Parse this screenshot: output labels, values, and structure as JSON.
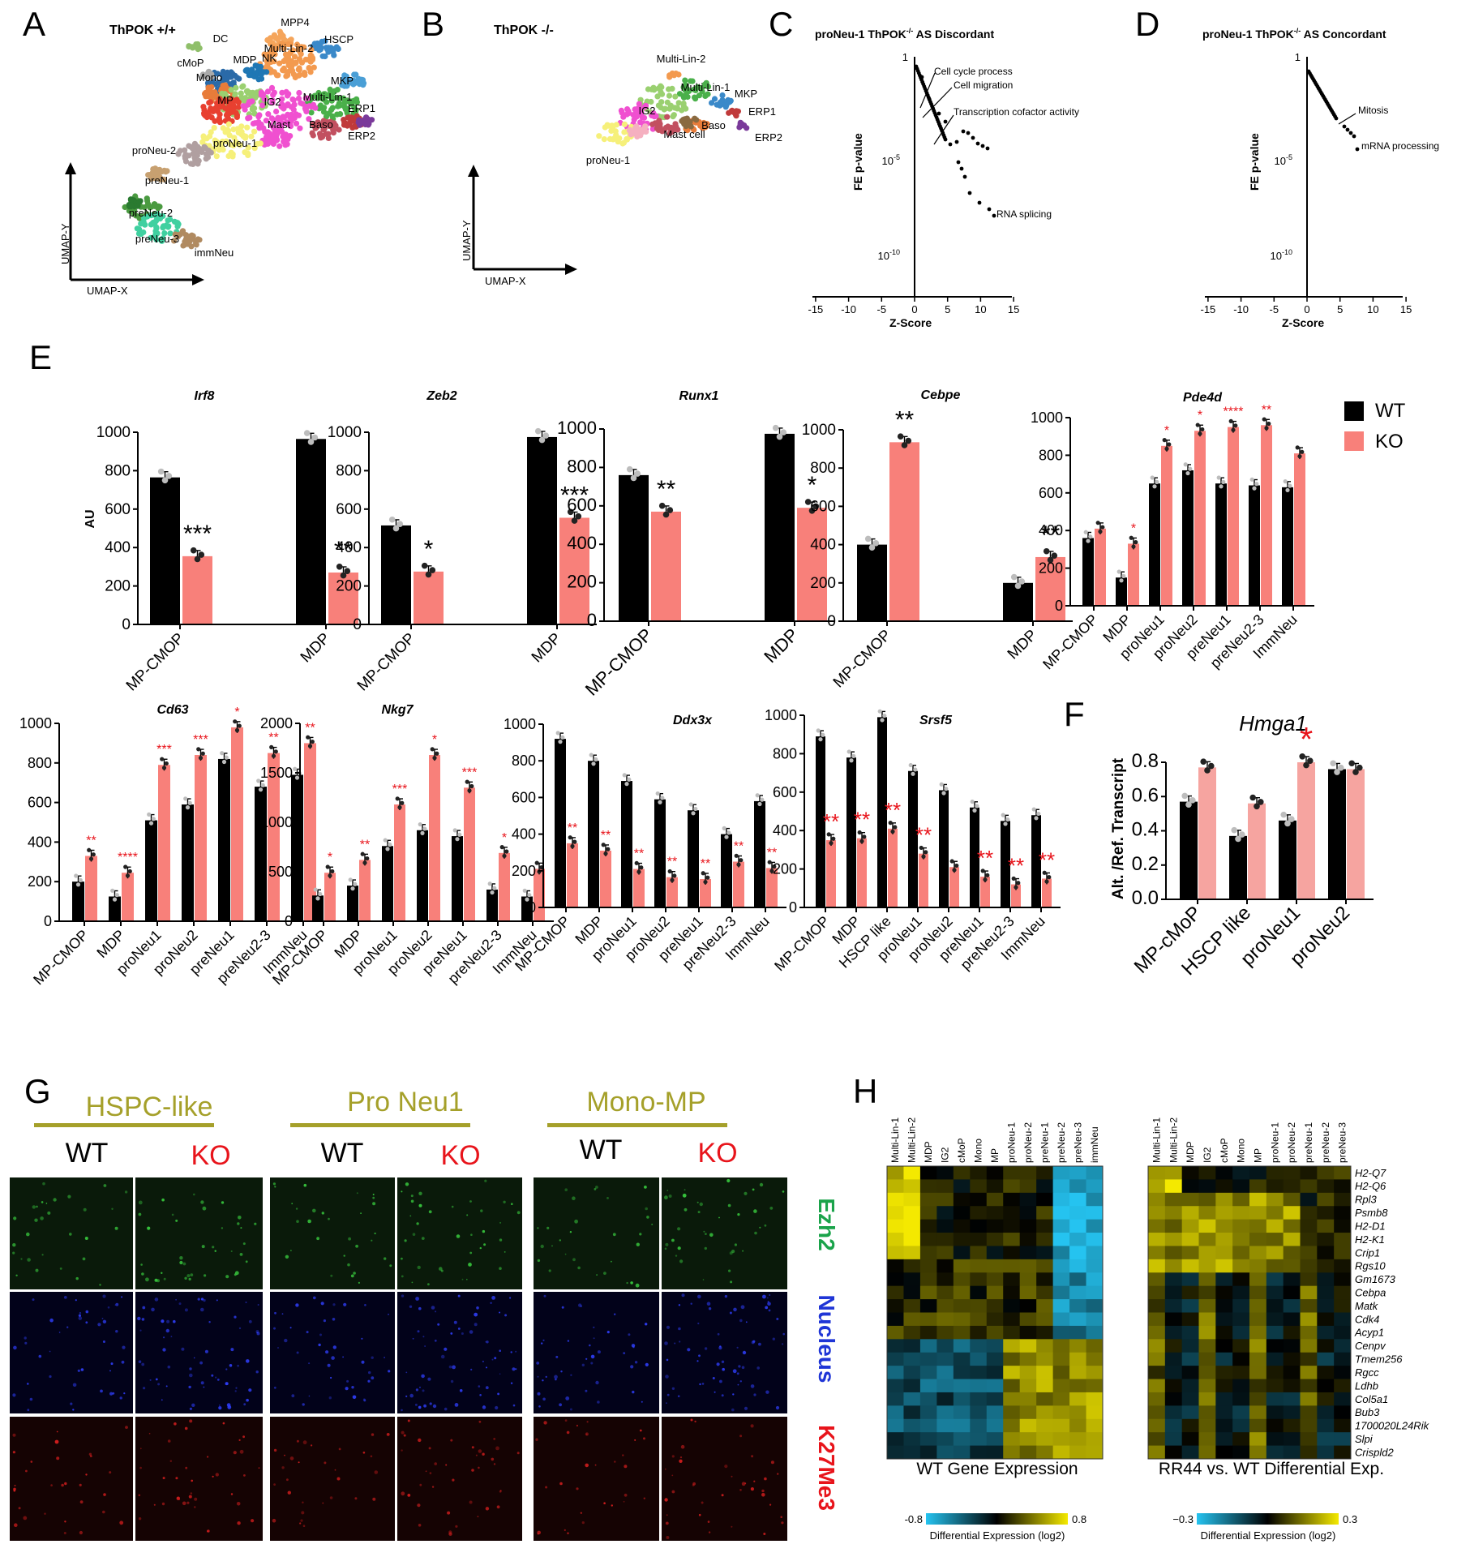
{
  "panel_letters": {
    "A": "A",
    "B": "B",
    "C": "C",
    "D": "D",
    "E": "E",
    "F": "F",
    "G": "G",
    "H": "H"
  },
  "colors": {
    "wt": "#000000",
    "ko": "#f8807a",
    "ko_light": "#f6a4a0",
    "star_black": "#000000",
    "star_red": "#e8141b",
    "olive": "#a5a02a"
  },
  "umap": {
    "A": {
      "title": "ThPOK +/+",
      "xlabel": "UMAP-X",
      "ylabel": "UMAP-Y",
      "labels": [
        "DC",
        "MPP4",
        "HSCP",
        "cMoP",
        "MDP",
        "NK",
        "Multi-Lin-2",
        "Mono",
        "MKP",
        "MP",
        "IG2",
        "Multi-Lin-1",
        "ERP1",
        "Mast",
        "Baso",
        "ERP2",
        "proNeu-2",
        "proNeu-1",
        "preNeu-1",
        "preNeu-2",
        "preNeu-3",
        "immNeu"
      ]
    },
    "B": {
      "title": "ThPOK -/-",
      "xlabel": "UMAP-X",
      "ylabel": "UMAP-Y",
      "labels": [
        "Multi-Lin-2",
        "Multi-Lin-1",
        "MKP",
        "IG2",
        "ERP1",
        "Baso",
        "Mast cell",
        "ERP2",
        "proNeu-1"
      ]
    }
  },
  "enrichment": {
    "C": {
      "title": "proNeu-1 ThPOK",
      "title_sup": "-/-",
      "title_tail": " AS Discordant",
      "ylabel": "FE p-value",
      "xlabel": "Z-Score",
      "yticks": [
        "1",
        "10",
        "10"
      ],
      "ytick_exp": [
        "",
        "-5",
        "-10"
      ],
      "xticks": [
        "-15",
        "-10",
        "-5",
        "0",
        "5",
        "10",
        "15"
      ],
      "annotations": [
        "Cell cycle process",
        "Cell migration",
        "Transcription cofactor activity",
        "RNA splicing"
      ]
    },
    "D": {
      "title": "proNeu-1 ThPOK",
      "title_sup": "-/-",
      "title_tail": " AS Concordant",
      "ylabel": "FE p-value",
      "xlabel": "Z-Score",
      "yticks": [
        "1",
        "10",
        "10"
      ],
      "ytick_exp": [
        "",
        "-5",
        "-10"
      ],
      "xticks": [
        "-15",
        "-10",
        "-5",
        "0",
        "5",
        "10",
        "15"
      ],
      "annotations": [
        "Mitosis",
        "mRNA processing"
      ]
    }
  },
  "legend": {
    "wt": "WT",
    "ko": "KO"
  },
  "chart_data": [
    {
      "type": "bar",
      "panel": "E",
      "title": "Irf8",
      "ylabel": "AU",
      "ylim": [
        0,
        1000
      ],
      "yticks": [
        "0",
        "200",
        "400",
        "600",
        "800",
        "1000"
      ],
      "categories": [
        "MP-CMOP",
        "MDP"
      ],
      "series": [
        {
          "name": "WT",
          "values": [
            765,
            965
          ]
        },
        {
          "name": "KO",
          "values": [
            355,
            270
          ]
        }
      ],
      "stars": [
        "***",
        "**"
      ],
      "star_color": "black"
    },
    {
      "type": "bar",
      "panel": "E",
      "title": "Zeb2",
      "ylim": [
        0,
        1000
      ],
      "yticks": [
        "0",
        "200",
        "400",
        "600",
        "800",
        "1000"
      ],
      "categories": [
        "MP-CMOP",
        "MDP"
      ],
      "series": [
        {
          "name": "WT",
          "values": [
            515,
            975
          ]
        },
        {
          "name": "KO",
          "values": [
            275,
            555
          ]
        }
      ],
      "stars": [
        "*",
        "***"
      ],
      "star_color": "black"
    },
    {
      "type": "bar",
      "panel": "E",
      "title": "Runx1",
      "ylim": [
        0,
        1000
      ],
      "yticks": [
        "0",
        "200",
        "400",
        "600",
        "800",
        "1000"
      ],
      "categories": [
        "MP-CMOP",
        "MDP"
      ],
      "series": [
        {
          "name": "WT",
          "values": [
            760,
            975
          ]
        },
        {
          "name": "KO",
          "values": [
            570,
            590
          ]
        }
      ],
      "stars": [
        "**",
        "*"
      ],
      "star_color": "black"
    },
    {
      "type": "bar",
      "panel": "E",
      "title": "Cebpe",
      "ylim": [
        0,
        1000
      ],
      "yticks": [
        "0",
        "200",
        "400",
        "600",
        "800",
        "1000"
      ],
      "categories": [
        "MP-CMOP",
        "MDP"
      ],
      "series": [
        {
          "name": "WT",
          "values": [
            400,
            200
          ]
        },
        {
          "name": "KO",
          "values": [
            935,
            335
          ]
        }
      ],
      "stars": [
        "**",
        "**"
      ],
      "star_color": "black"
    },
    {
      "type": "bar",
      "panel": "E",
      "title": "Pde4d",
      "ylim": [
        0,
        1000
      ],
      "yticks": [
        "0",
        "200",
        "400",
        "600",
        "800",
        "1000"
      ],
      "categories": [
        "MP-CMOP",
        "MDP",
        "proNeu1",
        "proNeu2",
        "preNeu1",
        "preNeu2-3",
        "ImmNeu"
      ],
      "series": [
        {
          "name": "WT",
          "values": [
            360,
            150,
            650,
            720,
            650,
            640,
            630
          ]
        },
        {
          "name": "KO",
          "values": [
            410,
            330,
            850,
            930,
            950,
            960,
            810
          ]
        }
      ],
      "stars": [
        "",
        "*",
        "*",
        "*",
        "****",
        "**",
        ""
      ],
      "star_color": "red"
    },
    {
      "type": "bar",
      "panel": "E",
      "title": "Cd63",
      "ylim": [
        0,
        1000
      ],
      "yticks": [
        "0",
        "200",
        "400",
        "600",
        "800",
        "1000"
      ],
      "categories": [
        "MP-CMOP",
        "MDP",
        "proNeu1",
        "proNeu2",
        "preNeu1",
        "preNeu2-3",
        "ImmNeu"
      ],
      "series": [
        {
          "name": "WT",
          "values": [
            200,
            125,
            510,
            590,
            820,
            680,
            740
          ]
        },
        {
          "name": "KO",
          "values": [
            330,
            245,
            790,
            840,
            980,
            850,
            900
          ]
        }
      ],
      "stars": [
        "**",
        "****",
        "***",
        "***",
        "*",
        "**",
        "**"
      ],
      "star_color": "red"
    },
    {
      "type": "bar",
      "panel": "E",
      "title": "Nkg7",
      "ylim": [
        0,
        2000
      ],
      "yticks": [
        "0",
        "500",
        "1000",
        "1500",
        "2000"
      ],
      "categories": [
        "MP-CMOP",
        "MDP",
        "proNeu1",
        "proNeu2",
        "preNeu1",
        "preNeu2-3",
        "ImmNeu"
      ],
      "series": [
        {
          "name": "WT",
          "values": [
            260,
            360,
            760,
            920,
            860,
            320,
            250
          ]
        },
        {
          "name": "KO",
          "values": [
            490,
            620,
            1180,
            1680,
            1350,
            690,
            530
          ]
        }
      ],
      "stars": [
        "*",
        "**",
        "***",
        "*",
        "***",
        "*",
        ""
      ],
      "star_color": "red"
    },
    {
      "type": "bar",
      "panel": "E",
      "title": "Ddx3x",
      "ylim": [
        0,
        1000
      ],
      "yticks": [
        "0",
        "200",
        "400",
        "600",
        "800",
        "1000"
      ],
      "categories": [
        "MP-CMOP",
        "MDP",
        "proNeu1",
        "proNeu2",
        "preNeu1",
        "preNeu2-3",
        "ImmNeu"
      ],
      "series": [
        {
          "name": "WT",
          "values": [
            920,
            800,
            690,
            590,
            530,
            400,
            580
          ]
        },
        {
          "name": "KO",
          "values": [
            350,
            310,
            210,
            165,
            155,
            250,
            215
          ]
        }
      ],
      "stars": [
        "**",
        "**",
        "**",
        "**",
        "**",
        "**",
        "**"
      ],
      "star_color": "red"
    },
    {
      "type": "bar",
      "panel": "E",
      "title": "Srsf5",
      "ylim": [
        0,
        1000
      ],
      "yticks": [
        "0",
        "200",
        "400",
        "600",
        "800",
        "1000"
      ],
      "categories": [
        "MP-CMOP",
        "MDP",
        "HSCP like",
        "proNeu1",
        "proNeu2",
        "preNeu1",
        "preNeu2-3",
        "ImmNeu"
      ],
      "series": [
        {
          "name": "WT",
          "values": [
            890,
            780,
            990,
            710,
            610,
            520,
            450,
            480
          ]
        },
        {
          "name": "KO",
          "values": [
            350,
            360,
            410,
            280,
            210,
            160,
            120,
            150
          ]
        }
      ],
      "stars": [
        "**",
        "**",
        "**",
        "**",
        "",
        "**",
        "**",
        "**"
      ],
      "star_color": "red"
    },
    {
      "type": "bar",
      "panel": "F",
      "title": "Hmga1",
      "ylabel": "Alt. /Ref. Transcript",
      "ylim": [
        0,
        0.8
      ],
      "yticks": [
        "0.0",
        "0.2",
        "0.4",
        "0.6",
        "0.8"
      ],
      "categories": [
        "MP-cMoP",
        "HSCP like",
        "proNeu1",
        "proNeu2"
      ],
      "series": [
        {
          "name": "WT",
          "values": [
            0.57,
            0.37,
            0.46,
            0.76
          ]
        },
        {
          "name": "KO",
          "values": [
            0.77,
            0.56,
            0.8,
            0.76
          ]
        }
      ],
      "stars": [
        "",
        "",
        "*",
        ""
      ],
      "star_color": "red"
    }
  ],
  "microscopy": {
    "groups": [
      "HSPC-like",
      "Pro Neu1",
      "Mono-MP"
    ],
    "wt": "WT",
    "ko": "KO",
    "channels": [
      "Ezh2",
      "Nucleus",
      "K27Me3"
    ]
  },
  "heatmaps": {
    "left": {
      "columns": [
        "Multi-Lin-1",
        "Multi-Lin-2",
        "MDP",
        "IG2",
        "cMoP",
        "Mono",
        "MP",
        "proNeu-1",
        "proNeu-2",
        "preNeu-1",
        "preNeu-2",
        "preNeu-3",
        "immNeu"
      ],
      "caption": "WT Gene Expression",
      "scale_min": "-0.8",
      "scale_max": "0.8",
      "scale_label": "Differential Expression (log2)"
    },
    "right": {
      "columns": [
        "Multi-Lin-1",
        "Multi-Lin-2",
        "MDP",
        "IG2",
        "cMoP",
        "Mono",
        "MP",
        "proNeu-1",
        "proNeu-2",
        "preNeu-1",
        "preNeu-2",
        "preNeu-3"
      ],
      "caption": "RR44 vs. WT Differential Exp.",
      "scale_min": "−0.3",
      "scale_max": "0.3",
      "scale_label": "Differential Expression (log2)"
    },
    "genes": [
      "H2-Q7",
      "H2-Q6",
      "Rpl3",
      "Psmb8",
      "H2-D1",
      "H2-K1",
      "Crip1",
      "Rgs10",
      "Gm1673",
      "Cebpa",
      "Matk",
      "Cdk4",
      "Acyp1",
      "Cenpv",
      "Tmem256",
      "Rgcc",
      "Ldhb",
      "Col5a1",
      "Bub3",
      "1700020L24Rik",
      "Slpi",
      "Crispld2"
    ]
  }
}
